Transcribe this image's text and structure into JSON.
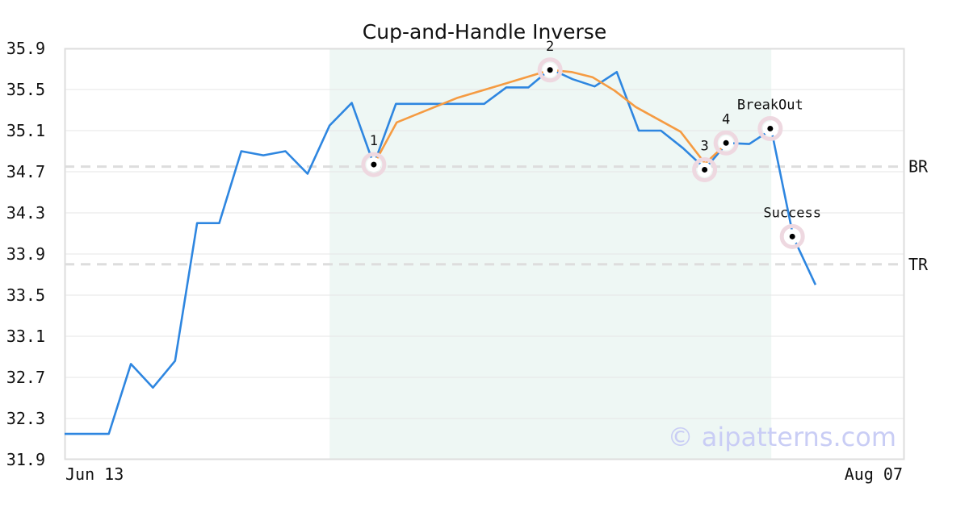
{
  "chart_data": {
    "type": "line",
    "title": "Cup-and-Handle Inverse",
    "watermark": "© aipatterns.com",
    "ylim": [
      31.9,
      35.9
    ],
    "y_ticks": [
      "35.9",
      "35.5",
      "35.1",
      "34.7",
      "34.3",
      "33.9",
      "33.5",
      "33.1",
      "32.7",
      "32.3",
      "31.9"
    ],
    "x_tick_labels": [
      "Jun 13",
      "Aug 07"
    ],
    "grid": true,
    "colors": {
      "price": "#2e86e0",
      "pattern": "#f59b42",
      "band": "#eef7f4",
      "level": "#dddddd",
      "marker_ring": "#eed8e0",
      "watermark": "#c9cdf5"
    },
    "series": [
      {
        "key": "price",
        "values": [
          32.15,
          32.15,
          32.15,
          32.83,
          32.6,
          32.86,
          34.2,
          34.2,
          34.9,
          34.86,
          34.9,
          34.68,
          35.15,
          35.37,
          34.77,
          35.36,
          35.36,
          35.36,
          35.36,
          35.36,
          35.52,
          35.52,
          35.7,
          35.6,
          35.53,
          35.67,
          35.1,
          35.1,
          34.93,
          34.73,
          34.98,
          34.97,
          35.11,
          34.06,
          33.6
        ]
      },
      {
        "key": "pattern",
        "points": [
          [
            14,
            34.77
          ],
          [
            15.04,
            35.18
          ],
          [
            17.8,
            35.42
          ],
          [
            19.84,
            35.55
          ],
          [
            22,
            35.69
          ],
          [
            22.95,
            35.67
          ],
          [
            23.9,
            35.62
          ],
          [
            24.9,
            35.49
          ],
          [
            25.86,
            35.33
          ],
          [
            27.89,
            35.09
          ],
          [
            29,
            34.78
          ],
          [
            30,
            34.98
          ]
        ]
      }
    ],
    "levels": [
      {
        "label": "BR",
        "value": 34.75
      },
      {
        "label": "TR",
        "value": 33.8
      }
    ],
    "band": {
      "from_index": 12,
      "to_index": 32
    },
    "markers": [
      {
        "label": "1",
        "index": 14,
        "value": 34.77,
        "label_pos": "above"
      },
      {
        "label": "2",
        "index": 21.98,
        "value": 35.69,
        "label_pos": "above"
      },
      {
        "label": "3",
        "index": 28.98,
        "value": 34.72,
        "label_pos": "above-left"
      },
      {
        "label": "4",
        "index": 29.95,
        "value": 34.98,
        "label_pos": "above"
      },
      {
        "label": "BreakOut",
        "index": 31.95,
        "value": 35.12,
        "label_pos": "above"
      },
      {
        "label": "Success",
        "index": 32.95,
        "value": 34.07,
        "label_pos": "above"
      }
    ]
  }
}
